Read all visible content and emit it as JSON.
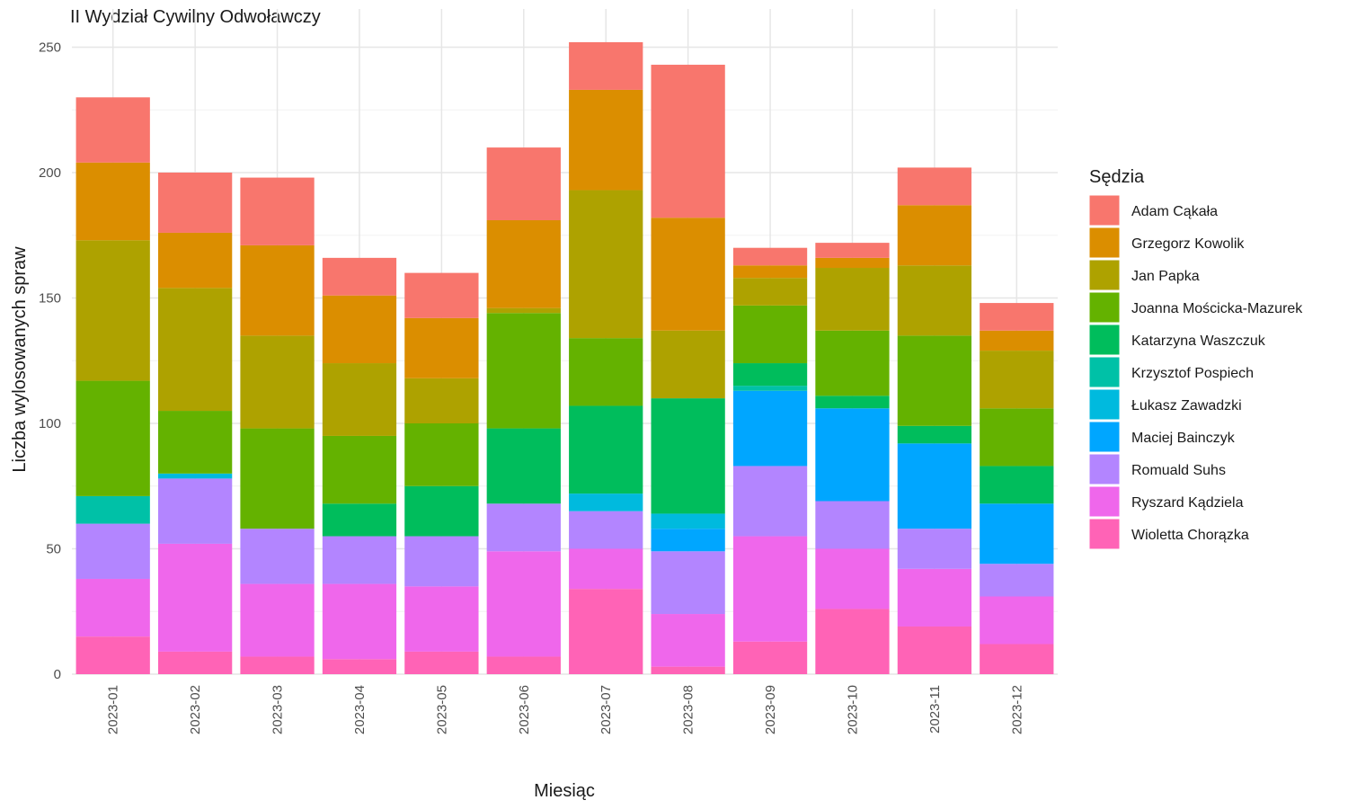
{
  "chart_data": {
    "type": "bar",
    "stacked": true,
    "title": "II Wydział Cywilny Odwoławczy",
    "xlabel": "Miesiąc",
    "ylabel": "Liczba wylosowanych spraw",
    "ylim": [
      0,
      252
    ],
    "yticks": [
      0,
      50,
      100,
      150,
      200,
      250
    ],
    "grid": true,
    "legend_title": "Sędzia",
    "legend_position": "right",
    "categories": [
      "2023-01",
      "2023-02",
      "2023-03",
      "2023-04",
      "2023-05",
      "2023-06",
      "2023-07",
      "2023-08",
      "2023-09",
      "2023-10",
      "2023-11",
      "2023-12"
    ],
    "series": [
      {
        "name": "Adam Cąkała",
        "color": "#F8766D",
        "values": [
          26,
          24,
          27,
          15,
          18,
          29,
          19,
          61,
          7,
          6,
          15,
          11
        ]
      },
      {
        "name": "Grzegorz Kowolik",
        "color": "#DB8E00",
        "values": [
          31,
          22,
          36,
          27,
          24,
          35,
          40,
          45,
          5,
          4,
          24,
          8
        ]
      },
      {
        "name": "Jan Papka",
        "color": "#AEA200",
        "values": [
          56,
          49,
          37,
          29,
          18,
          2,
          59,
          27,
          11,
          25,
          28,
          23
        ]
      },
      {
        "name": "Joanna Mościcka-Mazurek",
        "color": "#64B200",
        "values": [
          46,
          25,
          40,
          27,
          25,
          46,
          27,
          0,
          23,
          26,
          36,
          23
        ]
      },
      {
        "name": "Katarzyna Waszczuk",
        "color": "#00BD5C",
        "values": [
          0,
          0,
          0,
          13,
          20,
          30,
          35,
          46,
          9,
          5,
          7,
          15
        ]
      },
      {
        "name": "Krzysztof Pospiech",
        "color": "#00C1A7",
        "values": [
          11,
          0,
          0,
          0,
          0,
          0,
          0,
          0,
          2,
          0,
          0,
          0
        ]
      },
      {
        "name": "Łukasz Zawadzki",
        "color": "#00BADE",
        "values": [
          0,
          2,
          0,
          0,
          0,
          0,
          7,
          6,
          0,
          0,
          0,
          0
        ]
      },
      {
        "name": "Maciej Bainczyk",
        "color": "#00A6FF",
        "values": [
          0,
          0,
          0,
          0,
          0,
          0,
          0,
          9,
          30,
          37,
          34,
          24
        ]
      },
      {
        "name": "Romuald Suhs",
        "color": "#B385FF",
        "values": [
          22,
          26,
          22,
          19,
          20,
          19,
          15,
          25,
          28,
          19,
          16,
          13
        ]
      },
      {
        "name": "Ryszard Kądziela",
        "color": "#EF67EB",
        "values": [
          23,
          43,
          29,
          30,
          26,
          42,
          16,
          21,
          42,
          24,
          23,
          19
        ]
      },
      {
        "name": "Wioletta Chorązka",
        "color": "#FF63B6",
        "values": [
          15,
          9,
          7,
          6,
          9,
          7,
          34,
          3,
          13,
          26,
          19,
          12
        ]
      }
    ]
  }
}
